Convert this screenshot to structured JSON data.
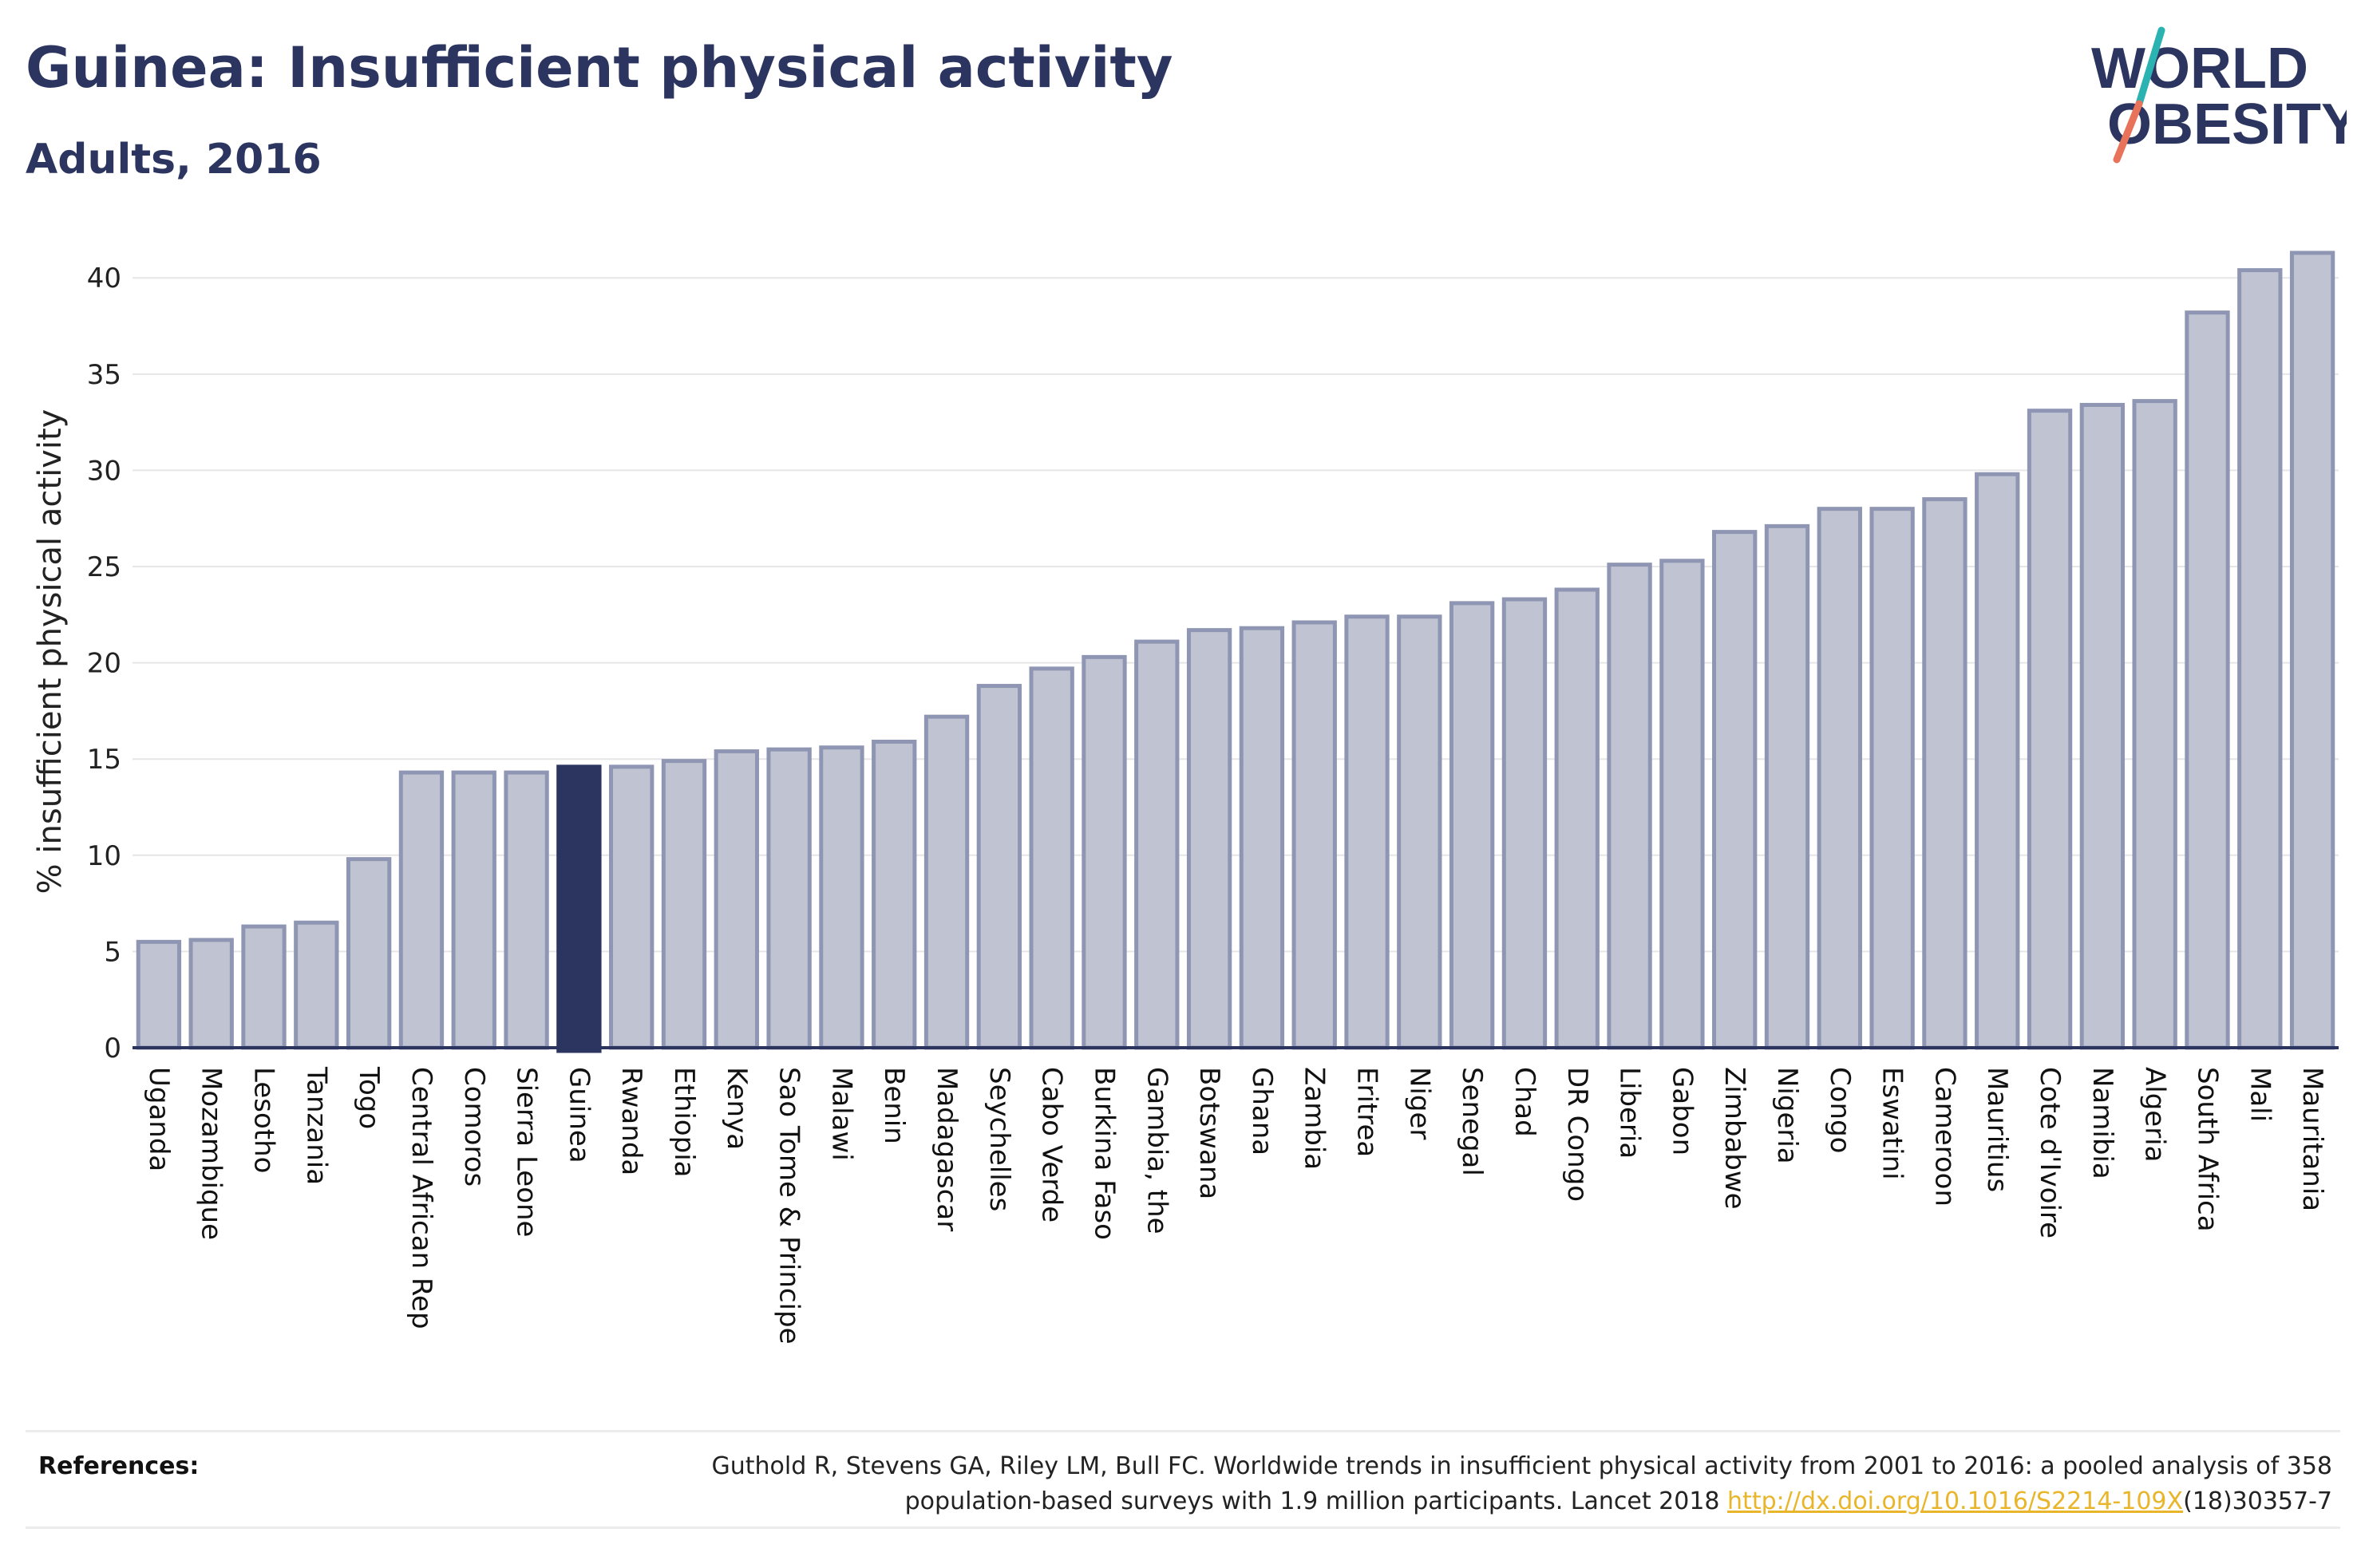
{
  "header": {
    "title": "Guinea: Insufficient physical activity",
    "subtitle": "Adults, 2016"
  },
  "logo": {
    "line1": "WORLD",
    "line2": "OBESITY",
    "colors": {
      "text": "#2b3560",
      "slash_top": "#2bb3b1",
      "slash_bottom": "#e8735a"
    }
  },
  "colors": {
    "bar": "#c0c4d2",
    "bar_border": "#8f96b3",
    "highlight": "#2b3560",
    "grid": "#e6e6e6",
    "axis": "#2b3560"
  },
  "chart_data": {
    "type": "bar",
    "title": "Guinea: Insufficient physical activity",
    "subtitle": "Adults, 2016",
    "xlabel": "",
    "ylabel": "% insufficient physical activity",
    "ylim": [
      0,
      42
    ],
    "yticks": [
      0,
      5,
      10,
      15,
      20,
      25,
      30,
      35,
      40
    ],
    "grid": true,
    "highlight": "Guinea",
    "categories": [
      "Uganda",
      "Mozambique",
      "Lesotho",
      "Tanzania",
      "Togo",
      "Central African Rep",
      "Comoros",
      "Sierra Leone",
      "Guinea",
      "Rwanda",
      "Ethiopia",
      "Kenya",
      "Sao Tome & Principe",
      "Malawi",
      "Benin",
      "Madagascar",
      "Seychelles",
      "Cabo Verde",
      "Burkina Faso",
      "Gambia, the",
      "Botswana",
      "Ghana",
      "Zambia",
      "Eritrea",
      "Niger",
      "Senegal",
      "Chad",
      "DR Congo",
      "Liberia",
      "Gabon",
      "Zimbabwe",
      "Nigeria",
      "Congo",
      "Eswatini",
      "Cameroon",
      "Mauritius",
      "Cote d'Ivoire",
      "Namibia",
      "Algeria",
      "South Africa",
      "Mali",
      "Mauritania"
    ],
    "values": [
      5.5,
      5.6,
      6.3,
      6.5,
      9.8,
      14.3,
      14.3,
      14.3,
      14.6,
      14.6,
      14.9,
      15.4,
      15.5,
      15.6,
      15.9,
      17.2,
      18.8,
      19.7,
      20.3,
      21.1,
      21.7,
      21.8,
      22.1,
      22.4,
      22.4,
      23.1,
      23.3,
      23.8,
      25.1,
      25.3,
      26.8,
      27.1,
      28.0,
      28.0,
      28.5,
      29.8,
      33.1,
      33.4,
      33.6,
      38.2,
      40.4,
      41.3
    ]
  },
  "references": {
    "label": "References:",
    "text_line1": "Guthold R, Stevens GA, Riley LM, Bull FC. Worldwide trends in insufficient physical activity from 2001 to 2016: a pooled analysis of 358",
    "text_line2_pre": "population-based surveys with 1.9 million participants. Lancet 2018 ",
    "link": "http://dx.doi.org/10.1016/S2214-109X",
    "text_line2_post": "(18)30357-7"
  }
}
